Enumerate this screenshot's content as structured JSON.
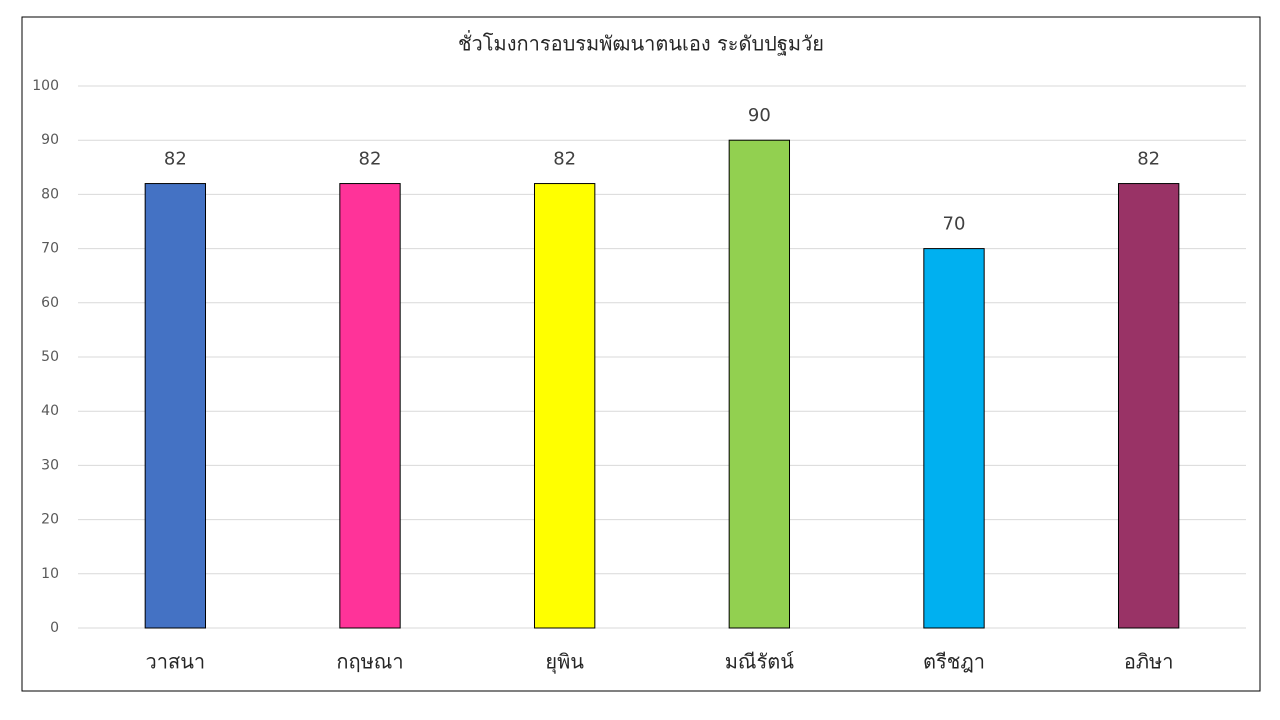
{
  "chart_data": {
    "type": "bar",
    "title": "ชั่วโมงการอบรมพัฒนาตนเอง ระดับปฐมวัย",
    "categories": [
      "วาสนา",
      "กฤษณา",
      "ยุพิน",
      "มณีรัตน์",
      "ตรีชฎา",
      "อภิษา"
    ],
    "values": [
      82,
      82,
      82,
      90,
      70,
      82
    ],
    "colors": [
      "#4472c4",
      "#ff3399",
      "#ffff00",
      "#92d050",
      "#00b0f0",
      "#993366"
    ],
    "ylim": [
      0,
      100
    ],
    "yticks": [
      0,
      10,
      20,
      30,
      40,
      50,
      60,
      70,
      80,
      90,
      100
    ],
    "grid": true
  }
}
